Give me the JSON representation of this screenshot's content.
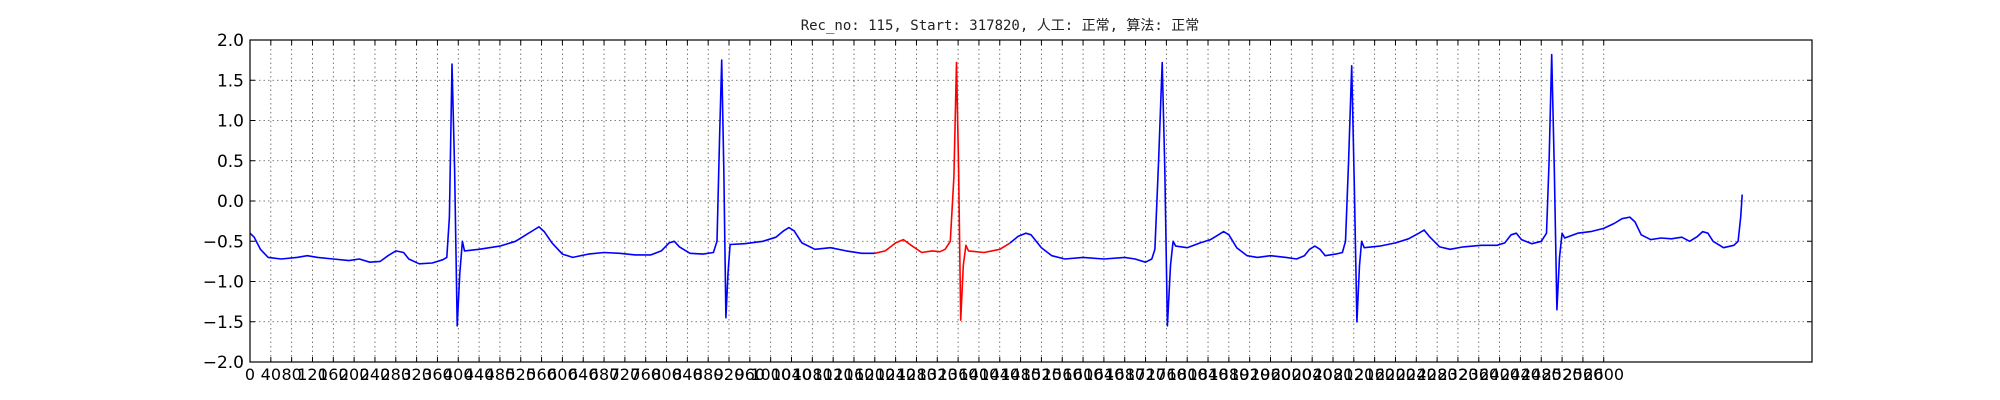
{
  "chart_data": {
    "type": "line",
    "title": "Rec_no: 115, Start: 317820, 人工: 正常, 算法: 正常",
    "xlabel": "",
    "ylabel": "",
    "xlim": [
      0,
      3000
    ],
    "ylim": [
      -2.0,
      2.0
    ],
    "grid": true,
    "yticks": [
      2.0,
      1.5,
      1.0,
      0.5,
      0.0,
      -0.5,
      -1.0,
      -1.5,
      -2.0
    ],
    "ytick_labels": [
      "2.0",
      "1.5",
      "1.0",
      "0.5",
      "0.0",
      "−0.5",
      "−1.0",
      "−1.5",
      "−2.0"
    ],
    "xtick_step": 40,
    "xtick_last": 2600,
    "colors": {
      "normal": "#0000ff",
      "highlight": "#ff0000"
    },
    "highlight_range": [
      1210,
      1470
    ],
    "series": [
      {
        "points": [
          [
            0,
            -0.4
          ],
          [
            8,
            -0.45
          ],
          [
            20,
            -0.6
          ],
          [
            35,
            -0.7
          ],
          [
            60,
            -0.72
          ],
          [
            90,
            -0.7
          ],
          [
            110,
            -0.68
          ],
          [
            130,
            -0.7
          ],
          [
            160,
            -0.72
          ],
          [
            190,
            -0.74
          ],
          [
            210,
            -0.72
          ],
          [
            230,
            -0.76
          ],
          [
            250,
            -0.75
          ],
          [
            265,
            -0.68
          ],
          [
            280,
            -0.62
          ],
          [
            295,
            -0.64
          ],
          [
            305,
            -0.72
          ],
          [
            325,
            -0.78
          ],
          [
            350,
            -0.77
          ],
          [
            370,
            -0.73
          ],
          [
            378,
            -0.7
          ],
          [
            383,
            -0.2
          ],
          [
            388,
            1.7
          ],
          [
            393,
            0.4
          ],
          [
            398,
            -1.55
          ],
          [
            403,
            -0.9
          ],
          [
            408,
            -0.5
          ],
          [
            412,
            -0.62
          ],
          [
            440,
            -0.6
          ],
          [
            480,
            -0.56
          ],
          [
            510,
            -0.5
          ],
          [
            530,
            -0.42
          ],
          [
            545,
            -0.36
          ],
          [
            555,
            -0.32
          ],
          [
            565,
            -0.38
          ],
          [
            580,
            -0.52
          ],
          [
            600,
            -0.66
          ],
          [
            620,
            -0.7
          ],
          [
            650,
            -0.66
          ],
          [
            680,
            -0.64
          ],
          [
            710,
            -0.65
          ],
          [
            740,
            -0.67
          ],
          [
            770,
            -0.67
          ],
          [
            790,
            -0.62
          ],
          [
            805,
            -0.52
          ],
          [
            815,
            -0.5
          ],
          [
            825,
            -0.57
          ],
          [
            845,
            -0.65
          ],
          [
            870,
            -0.66
          ],
          [
            890,
            -0.64
          ],
          [
            897,
            -0.5
          ],
          [
            902,
            0.8
          ],
          [
            906,
            1.75
          ],
          [
            910,
            0.4
          ],
          [
            914,
            -1.45
          ],
          [
            918,
            -0.9
          ],
          [
            922,
            -0.54
          ],
          [
            950,
            -0.53
          ],
          [
            985,
            -0.5
          ],
          [
            1010,
            -0.45
          ],
          [
            1025,
            -0.37
          ],
          [
            1035,
            -0.33
          ],
          [
            1045,
            -0.37
          ],
          [
            1060,
            -0.52
          ],
          [
            1085,
            -0.6
          ],
          [
            1115,
            -0.58
          ],
          [
            1145,
            -0.62
          ],
          [
            1175,
            -0.65
          ],
          [
            1200,
            -0.65
          ],
          [
            1220,
            -0.62
          ],
          [
            1240,
            -0.52
          ],
          [
            1255,
            -0.48
          ],
          [
            1270,
            -0.55
          ],
          [
            1290,
            -0.64
          ],
          [
            1310,
            -0.62
          ],
          [
            1325,
            -0.63
          ],
          [
            1335,
            -0.6
          ],
          [
            1345,
            -0.5
          ],
          [
            1352,
            0.3
          ],
          [
            1357,
            1.72
          ],
          [
            1361,
            0.4
          ],
          [
            1365,
            -1.48
          ],
          [
            1370,
            -0.8
          ],
          [
            1375,
            -0.55
          ],
          [
            1380,
            -0.62
          ],
          [
            1410,
            -0.64
          ],
          [
            1440,
            -0.6
          ],
          [
            1460,
            -0.52
          ],
          [
            1475,
            -0.44
          ],
          [
            1490,
            -0.4
          ],
          [
            1500,
            -0.42
          ],
          [
            1520,
            -0.58
          ],
          [
            1540,
            -0.68
          ],
          [
            1565,
            -0.72
          ],
          [
            1600,
            -0.7
          ],
          [
            1640,
            -0.72
          ],
          [
            1680,
            -0.7
          ],
          [
            1700,
            -0.72
          ],
          [
            1720,
            -0.76
          ],
          [
            1732,
            -0.72
          ],
          [
            1738,
            -0.6
          ],
          [
            1745,
            0.5
          ],
          [
            1752,
            1.72
          ],
          [
            1757,
            0.4
          ],
          [
            1762,
            -1.55
          ],
          [
            1768,
            -0.8
          ],
          [
            1773,
            -0.5
          ],
          [
            1778,
            -0.56
          ],
          [
            1800,
            -0.58
          ],
          [
            1825,
            -0.52
          ],
          [
            1845,
            -0.48
          ],
          [
            1860,
            -0.42
          ],
          [
            1870,
            -0.38
          ],
          [
            1880,
            -0.42
          ],
          [
            1895,
            -0.58
          ],
          [
            1915,
            -0.68
          ],
          [
            1935,
            -0.7
          ],
          [
            1960,
            -0.68
          ],
          [
            1990,
            -0.7
          ],
          [
            2010,
            -0.72
          ],
          [
            2025,
            -0.68
          ],
          [
            2035,
            -0.6
          ],
          [
            2045,
            -0.56
          ],
          [
            2055,
            -0.6
          ],
          [
            2065,
            -0.68
          ],
          [
            2085,
            -0.66
          ],
          [
            2098,
            -0.64
          ],
          [
            2104,
            -0.5
          ],
          [
            2110,
            0.5
          ],
          [
            2116,
            1.68
          ],
          [
            2121,
            0.2
          ],
          [
            2126,
            -1.5
          ],
          [
            2131,
            -0.8
          ],
          [
            2135,
            -0.5
          ],
          [
            2140,
            -0.58
          ],
          [
            2170,
            -0.56
          ],
          [
            2200,
            -0.52
          ],
          [
            2225,
            -0.47
          ],
          [
            2245,
            -0.4
          ],
          [
            2255,
            -0.36
          ],
          [
            2265,
            -0.44
          ],
          [
            2285,
            -0.57
          ],
          [
            2305,
            -0.6
          ],
          [
            2330,
            -0.57
          ],
          [
            2365,
            -0.55
          ],
          [
            2395,
            -0.55
          ],
          [
            2410,
            -0.52
          ],
          [
            2422,
            -0.42
          ],
          [
            2432,
            -0.4
          ],
          [
            2442,
            -0.48
          ],
          [
            2462,
            -0.53
          ],
          [
            2480,
            -0.5
          ],
          [
            2490,
            -0.4
          ],
          [
            2495,
            0.5
          ],
          [
            2500,
            1.82
          ],
          [
            2505,
            0.4
          ],
          [
            2510,
            -1.35
          ],
          [
            2515,
            -0.7
          ],
          [
            2520,
            -0.4
          ],
          [
            2525,
            -0.46
          ],
          [
            2550,
            -0.4
          ],
          [
            2575,
            -0.38
          ],
          [
            2600,
            -0.34
          ],
          [
            2620,
            -0.28
          ],
          [
            2635,
            -0.22
          ],
          [
            2650,
            -0.2
          ],
          [
            2660,
            -0.26
          ],
          [
            2672,
            -0.42
          ],
          [
            2690,
            -0.48
          ],
          [
            2710,
            -0.46
          ],
          [
            2730,
            -0.47
          ],
          [
            2750,
            -0.45
          ],
          [
            2765,
            -0.5
          ],
          [
            2780,
            -0.44
          ],
          [
            2790,
            -0.38
          ],
          [
            2800,
            -0.4
          ],
          [
            2810,
            -0.5
          ],
          [
            2830,
            -0.58
          ],
          [
            2850,
            -0.55
          ],
          [
            2858,
            -0.5
          ],
          [
            2863,
            -0.2
          ],
          [
            2866,
            0.08
          ]
        ]
      }
    ]
  }
}
